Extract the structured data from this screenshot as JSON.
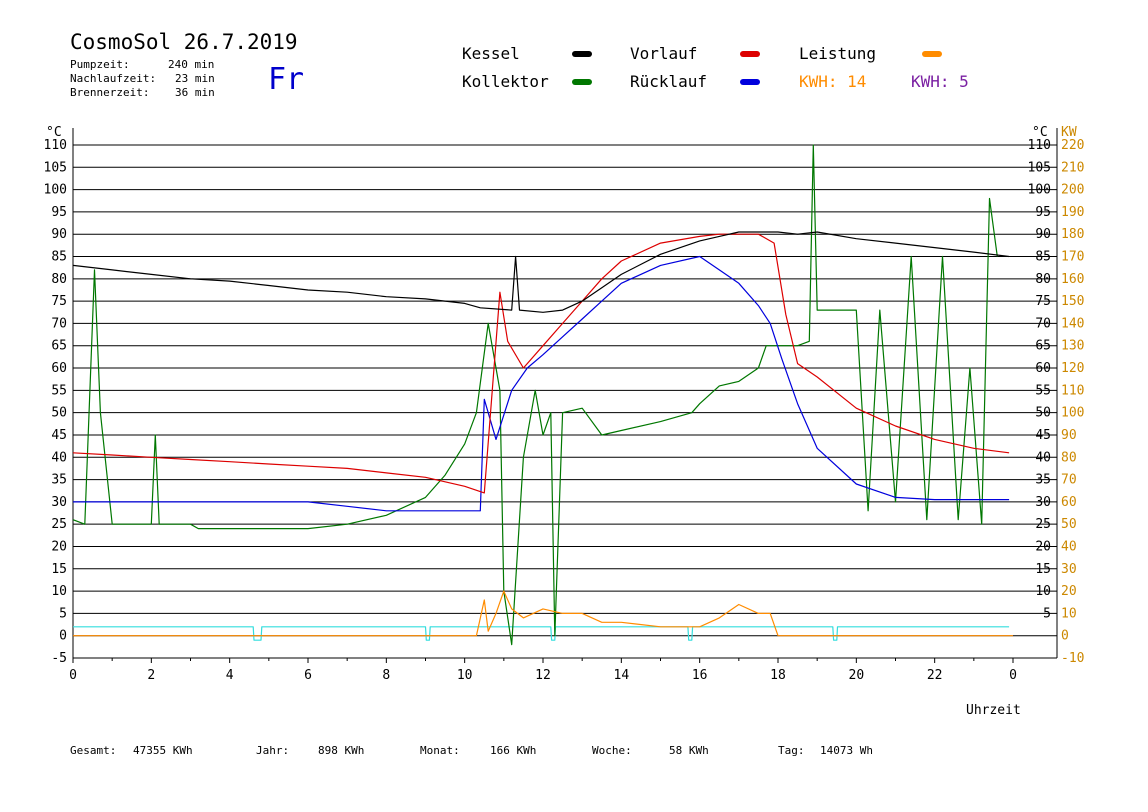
{
  "header": {
    "title": "CosmoSol 26.7.2019",
    "day": "Fr",
    "stats": [
      {
        "label": "Pumpzeit:",
        "value": "240 min"
      },
      {
        "label": "Nachlaufzeit:",
        "value": "23 min"
      },
      {
        "label": "Brennerzeit:",
        "value": "36 min"
      }
    ]
  },
  "legend": {
    "kessel": "Kessel",
    "vorlauf": "Vorlauf",
    "leistung": "Leistung",
    "kollektor": "Kollektor",
    "ruecklauf": "Rücklauf",
    "kwh_orange": "KWH: 14",
    "kwh_purple": "KWH: 5"
  },
  "colors": {
    "kessel": "#000000",
    "vorlauf": "#dd0000",
    "leistung": "#ff8c00",
    "kollektor": "#007700",
    "ruecklauf": "#0000dd",
    "purple": "#7a1fa2",
    "pump": "#33dddd",
    "kw_axis": "#cc8800"
  },
  "chart_data": {
    "type": "line",
    "xlabel": "Uhrzeit",
    "ylabel_left": "°C",
    "ylabel_right_c": "°C",
    "ylabel_right_kw": "KW",
    "xlim": [
      0,
      24
    ],
    "ylim": [
      -5,
      110
    ],
    "kw_lim": [
      -10,
      220
    ],
    "x_ticks": [
      "0",
      "2",
      "4",
      "6",
      "8",
      "10",
      "12",
      "14",
      "16",
      "18",
      "20",
      "22",
      "0"
    ],
    "y_ticks_left": [
      -5,
      0,
      5,
      10,
      15,
      20,
      25,
      30,
      35,
      40,
      45,
      50,
      55,
      60,
      65,
      70,
      75,
      80,
      85,
      90,
      95,
      100,
      105,
      110
    ],
    "y_ticks_right_c": [
      5,
      10,
      15,
      20,
      25,
      30,
      35,
      40,
      45,
      50,
      55,
      60,
      65,
      70,
      75,
      80,
      85,
      90,
      95,
      100,
      105,
      110
    ],
    "y_ticks_right_kw": [
      -10,
      0,
      10,
      20,
      30,
      40,
      50,
      60,
      70,
      80,
      90,
      100,
      110,
      120,
      130,
      140,
      150,
      160,
      170,
      180,
      190,
      200,
      210,
      220
    ],
    "grid": true,
    "series": [
      {
        "name": "Kessel",
        "key": "kessel",
        "x": [
          0,
          1,
          2,
          3,
          4,
          5,
          6,
          7,
          8,
          9,
          10,
          10.4,
          11.2,
          11.3,
          11.4,
          12,
          12.5,
          13,
          13.5,
          14,
          15,
          16,
          16.5,
          17,
          17.5,
          18,
          18.5,
          19,
          20,
          21,
          22,
          23,
          23.9
        ],
        "y": [
          83,
          82,
          81,
          80,
          79.5,
          78.5,
          77.5,
          77,
          76,
          75.5,
          74.5,
          73.5,
          73,
          85,
          73,
          72.5,
          73,
          75,
          78,
          81,
          85.5,
          88.5,
          89.5,
          90.5,
          90.5,
          90.5,
          90,
          90.5,
          89,
          88,
          87,
          86,
          85
        ]
      },
      {
        "name": "Vorlauf",
        "key": "vorlauf",
        "x": [
          0,
          1,
          2,
          3,
          4,
          5,
          6,
          7,
          8,
          9,
          10,
          10.5,
          10.9,
          11.1,
          11.5,
          12,
          12.5,
          13,
          13.5,
          14,
          15,
          16,
          16.5,
          17,
          17.5,
          17.9,
          18.2,
          18.5,
          19,
          20,
          21,
          22,
          23,
          23.9
        ],
        "y": [
          41,
          40.5,
          40,
          39.5,
          39,
          38.5,
          38,
          37.5,
          36.5,
          35.5,
          33.5,
          32,
          77,
          66,
          60,
          65,
          70,
          75,
          80,
          84,
          88,
          89.5,
          90,
          90,
          90,
          88,
          72,
          61,
          58,
          51,
          47,
          44,
          42,
          41
        ]
      },
      {
        "name": "Rücklauf",
        "key": "ruecklauf",
        "x": [
          0,
          1,
          2,
          3,
          4,
          5,
          6,
          7,
          8,
          9,
          10,
          10.4,
          10.5,
          10.8,
          11.2,
          11.6,
          12,
          12.5,
          13,
          13.5,
          14,
          15,
          16,
          16.5,
          17,
          17.5,
          17.8,
          18.1,
          18.5,
          19,
          20,
          21,
          22,
          23,
          23.9
        ],
        "y": [
          30,
          30,
          30,
          30,
          30,
          30,
          30,
          29,
          28,
          28,
          28,
          28,
          53,
          44,
          55,
          60,
          63,
          67,
          71,
          75,
          79,
          83,
          85,
          82,
          79,
          74,
          70,
          62,
          52,
          42,
          34,
          31,
          30.5,
          30.5,
          30.5
        ]
      },
      {
        "name": "Kollektor",
        "key": "kollektor",
        "x": [
          0,
          0.3,
          0.55,
          0.7,
          1,
          1.5,
          2,
          2.1,
          2.2,
          3,
          3.2,
          4,
          5,
          6,
          7,
          8,
          9,
          9.5,
          10,
          10.3,
          10.6,
          10.9,
          11.0,
          11.2,
          11.5,
          11.8,
          12.0,
          12.2,
          12.3,
          12.5,
          13,
          13.5,
          14,
          15,
          15.8,
          16,
          16.5,
          17,
          17.5,
          17.7,
          18.0,
          18.5,
          18.8,
          18.9,
          19.0,
          19.4,
          20,
          20.3,
          20.6,
          21,
          21.4,
          21.8,
          22.2,
          22.6,
          22.9,
          23.2,
          23.4,
          23.6
        ],
        "y": [
          26,
          25,
          82,
          50,
          25,
          25,
          25,
          45,
          25,
          25,
          24,
          24,
          24,
          24,
          25,
          27,
          31,
          36,
          43,
          50,
          70,
          55,
          10,
          -2,
          40,
          55,
          45,
          50,
          0,
          50,
          51,
          45,
          46,
          48,
          50,
          52,
          56,
          57,
          60,
          65,
          65,
          65,
          66,
          110,
          73,
          73,
          73,
          28,
          73,
          30,
          85,
          26,
          85,
          26,
          60,
          25,
          98,
          85
        ]
      },
      {
        "name": "Leistung",
        "key": "leistung",
        "x": [
          0,
          10.3,
          10.5,
          10.6,
          10.8,
          11.0,
          11.2,
          11.5,
          12,
          12.5,
          13,
          13.5,
          14,
          15,
          16,
          16.5,
          17,
          17.5,
          17.8,
          18.0,
          24
        ],
        "y": [
          0,
          0,
          8,
          1,
          5,
          10,
          6,
          4,
          6,
          5,
          5,
          3,
          3,
          2,
          2,
          4,
          7,
          5,
          5,
          0,
          0
        ]
      },
      {
        "name": "Pumpe",
        "key": "pump",
        "x": [
          0,
          4.6,
          4.62,
          4.8,
          4.82,
          9.0,
          9.02,
          9.1,
          9.12,
          12.2,
          12.22,
          12.3,
          12.32,
          15.7,
          15.72,
          15.8,
          15.82,
          19.4,
          19.42,
          19.5,
          19.52,
          23.9
        ],
        "y": [
          2,
          2,
          -1,
          -1,
          2,
          2,
          -1,
          -1,
          2,
          2,
          -1,
          -1,
          2,
          2,
          -1,
          -1,
          2,
          2,
          -1,
          -1,
          2,
          2
        ]
      }
    ]
  },
  "footer": [
    {
      "label": "Gesamt:",
      "value": "47355 KWh"
    },
    {
      "label": "Jahr:",
      "value": "898 KWh"
    },
    {
      "label": "Monat:",
      "value": "166 KWh"
    },
    {
      "label": "Woche:",
      "value": "58 KWh"
    },
    {
      "label": "Tag:",
      "value": "14073 Wh"
    }
  ]
}
